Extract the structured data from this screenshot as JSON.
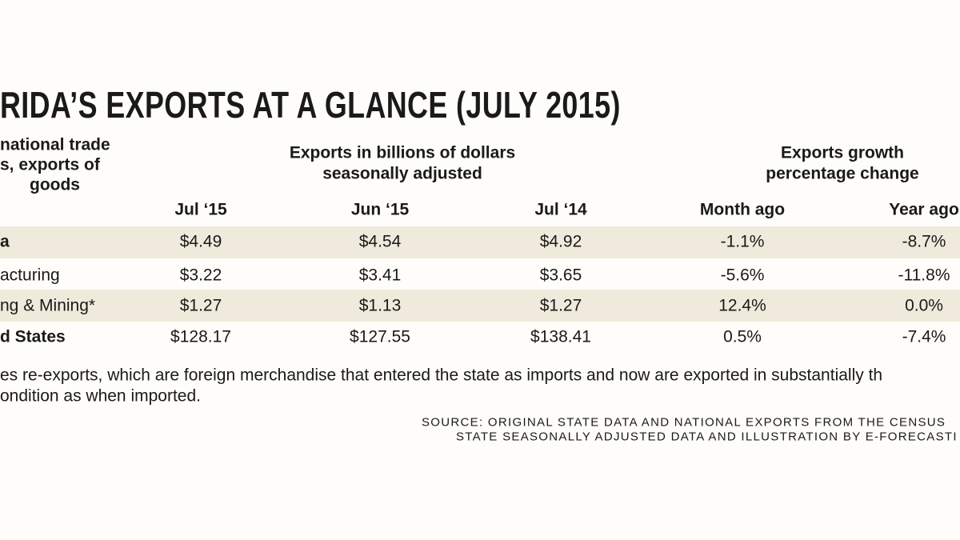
{
  "title": "RIDA’S EXPORTS AT A GLANCE (JULY 2015)",
  "table": {
    "stub_header": [
      "national trade",
      "s, exports of",
      "goods"
    ],
    "group_headers": [
      [
        "Exports in billions of dollars",
        "seasonally adjusted"
      ],
      [
        "Exports growth",
        "percentage change"
      ]
    ],
    "columns": [
      "Jul ‘15",
      "Jun ‘15",
      "Jul ‘14",
      "Month ago",
      "Year ago"
    ],
    "rows": [
      [
        "a",
        "$4.49",
        "$4.54",
        "$4.92",
        "-1.1%",
        "-8.7%"
      ],
      [
        "acturing",
        "$3.22",
        "$3.41",
        "$3.65",
        "-5.6%",
        "-11.8%"
      ],
      [
        "ng & Mining*",
        "$1.27",
        "$1.13",
        "$1.27",
        "12.4%",
        "0.0%"
      ],
      [
        "d States",
        "$128.17",
        "$127.55",
        "$138.41",
        "0.5%",
        "-7.4%"
      ]
    ]
  },
  "footnote": [
    "es re-exports, which are foreign merchandise that entered the state as imports and now are exported in substantially th",
    "ondition as when imported."
  ],
  "source": [
    "SOURCE: ORIGINAL STATE DATA AND NATIONAL EXPORTS FROM THE CENSUS",
    "STATE SEASONALLY ADJUSTED DATA AND ILLUSTRATION BY E-FORECASTI"
  ]
}
